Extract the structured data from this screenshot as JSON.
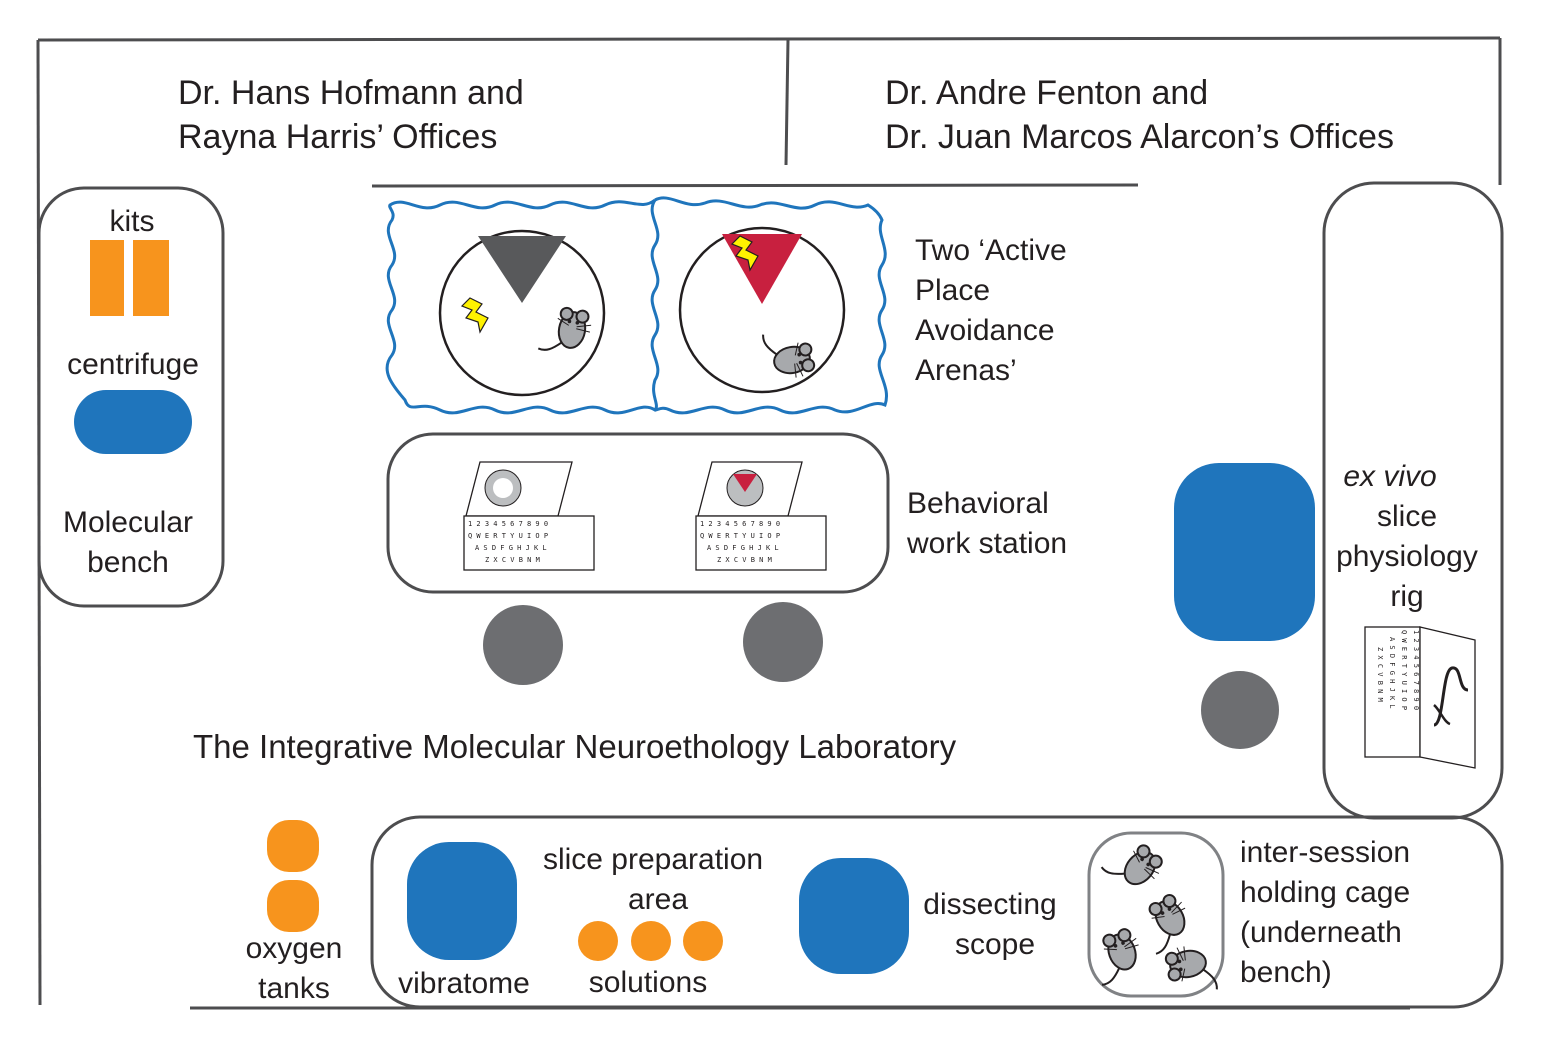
{
  "offices": {
    "left": {
      "line1": "Dr. Hans Hofmann and",
      "line2": "Rayna Harris’ Offices"
    },
    "right": {
      "line1": "Dr. Andre Fenton and",
      "line2": "Dr. Juan Marcos Alarcon’s Offices"
    }
  },
  "lab_title": "The Integrative Molecular Neuroethology Laboratory",
  "molecular_bench": {
    "kits_label": "kits",
    "centrifuge_label": "centrifuge",
    "bench_label_line1": "Molecular",
    "bench_label_line2": "bench"
  },
  "arenas": {
    "label_lines": [
      "Two ‘Active",
      "Place",
      "Avoidance",
      "Arenas’"
    ]
  },
  "behavior": {
    "label_line1": "Behavioral",
    "label_line2": "work station"
  },
  "keyboard": {
    "row1": "1 2 3 4 5 6 7 8 9 0",
    "row2": "Q W E R T Y U I O P",
    "row3": "A S D F G H J K L",
    "row4": "Z X C V B N M"
  },
  "ephys": {
    "label_italic": "ex vivo",
    "label_line2": "slice",
    "label_line3": "physiology",
    "label_line4": "rig"
  },
  "oxygen": {
    "line1": "oxygen",
    "line2": "tanks"
  },
  "slice_bench": {
    "vibratome_label": "vibratome",
    "prep_line1": "slice preparation",
    "prep_line2": "area",
    "solutions_label": "solutions",
    "scope_line1": "dissecting",
    "scope_line2": "scope",
    "cage_lines": [
      "inter-session",
      "holding cage",
      "(underneath",
      "bench)"
    ]
  },
  "colors": {
    "orange": "#f7941d",
    "blue": "#1f75bc",
    "gray": "#6d6e71",
    "dark_gray": "#58595b",
    "crimson": "#c8203f",
    "yellow": "#fff200",
    "mouse_gray": "#a7a9ac",
    "line": "#4d4d4f"
  }
}
